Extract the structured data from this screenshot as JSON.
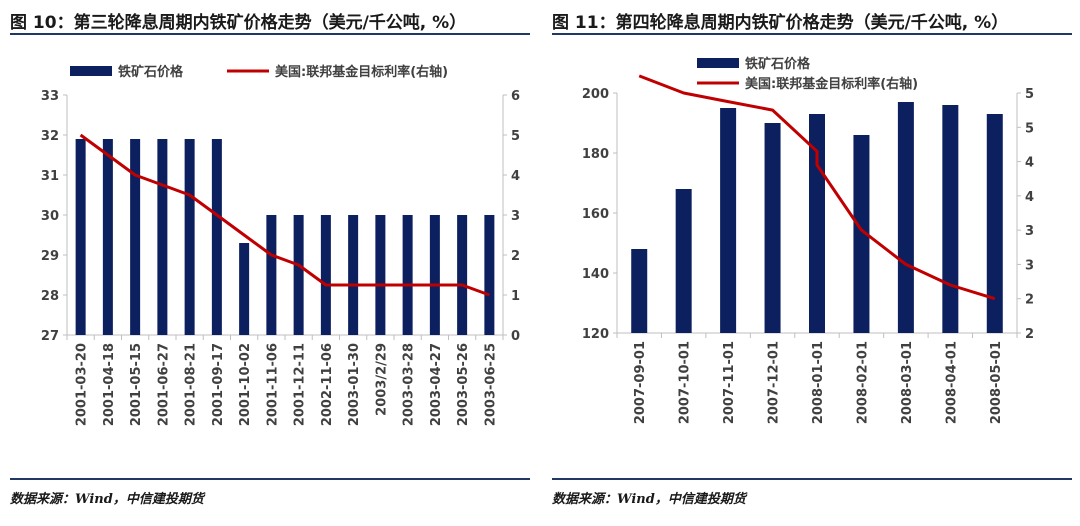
{
  "colors": {
    "bar": "#0c1f5e",
    "line": "#c00000",
    "axis": "#bfbfbf",
    "rule": "#1f3864"
  },
  "chart_data": [
    {
      "type": "bar+line",
      "title": "图 10：第三轮降息周期内铁矿价格走势（美元/千公吨, %）",
      "source": "数据来源：Wind，中信建投期货",
      "legend": {
        "bar": "铁矿石价格",
        "line": "美国:联邦基金目标利率(右轴)"
      },
      "categories": [
        "2001-03-20",
        "2001-04-18",
        "2001-05-15",
        "2001-06-27",
        "2001-08-21",
        "2001-09-17",
        "2001-10-02",
        "2001-11-06",
        "2001-12-11",
        "2002-11-06",
        "2003-01-30",
        "2003/2/29",
        "2003-03-28",
        "2003-04-27",
        "2003-05-26",
        "2003-06-25"
      ],
      "bar_values": [
        31.9,
        31.9,
        31.9,
        31.9,
        31.9,
        31.9,
        29.3,
        30.0,
        30.0,
        30.0,
        30.0,
        30.0,
        30.0,
        30.0,
        30.0,
        30.0
      ],
      "line_values": [
        5.0,
        4.5,
        4.0,
        3.75,
        3.5,
        3.0,
        2.5,
        2.0,
        1.75,
        1.25,
        1.25,
        1.25,
        1.25,
        1.25,
        1.25,
        1.0
      ],
      "left_axis": {
        "min": 27,
        "max": 33,
        "ticks": [
          "27",
          "28",
          "29",
          "30",
          "31",
          "32",
          "33"
        ]
      },
      "right_axis": {
        "min": 0,
        "max": 6,
        "ticks": [
          "0",
          "1",
          "2",
          "3",
          "4",
          "5",
          "6"
        ]
      }
    },
    {
      "type": "bar+line",
      "title": "图 11：第四轮降息周期内铁矿价格走势（美元/千公吨, %）",
      "source": "数据来源：Wind，中信建投期货",
      "legend": {
        "bar": "铁矿石价格",
        "line": "美国:联邦基金目标利率(右轴)"
      },
      "categories": [
        "2007-09-01",
        "2007-10-01",
        "2007-11-01",
        "2007-12-01",
        "2008-01-01",
        "2008-02-01",
        "2008-03-01",
        "2008-04-01",
        "2008-05-01"
      ],
      "bar_values": [
        148,
        168,
        195,
        190,
        193,
        186,
        197,
        196,
        193
      ],
      "line_values": [
        5.25,
        5.0,
        4.875,
        4.75,
        4.15,
        3.0,
        2.5,
        2.2,
        2.0
      ],
      "line_break": {
        "value": 3.95,
        "after_index": 4
      },
      "left_axis": {
        "min": 120,
        "max": 200,
        "ticks": [
          "120",
          "140",
          "160",
          "180",
          "200"
        ]
      },
      "right_axis": {
        "min": 1.5,
        "max": 5,
        "ticks": [
          "2",
          "2",
          "3",
          "3",
          "4",
          "4",
          "5",
          "5"
        ]
      }
    }
  ]
}
